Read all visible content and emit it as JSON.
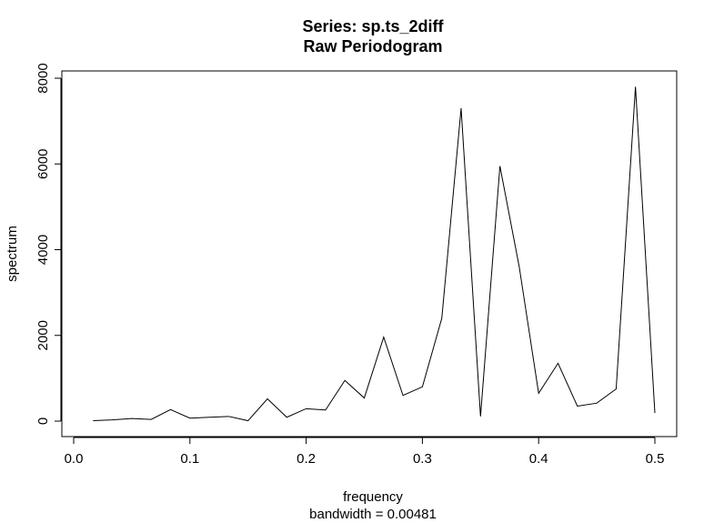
{
  "chart_data": {
    "type": "line",
    "title": "Series: sp.ts_2diff",
    "subtitle": "Raw Periodogram",
    "xlabel": "frequency",
    "xlabel_sub": "bandwidth = 0.00481",
    "ylabel": "spectrum",
    "xlim": [
      0,
      0.5
    ],
    "ylim": [
      0,
      8000
    ],
    "x_ticks": [
      "0.0",
      "0.1",
      "0.2",
      "0.3",
      "0.4",
      "0.5"
    ],
    "y_ticks": [
      "0",
      "2000",
      "4000",
      "6000",
      "8000"
    ],
    "grid": false,
    "line_color": "#000000",
    "series": [
      {
        "x": [
          0.0167,
          0.0333,
          0.05,
          0.0667,
          0.0833,
          0.1,
          0.1167,
          0.1333,
          0.15,
          0.1667,
          0.1833,
          0.2,
          0.2167,
          0.2333,
          0.25,
          0.2667,
          0.2833,
          0.3,
          0.3167,
          0.3333,
          0.35,
          0.3667,
          0.3833,
          0.4,
          0.4167,
          0.4333,
          0.45,
          0.4667,
          0.4833,
          0.5
        ],
        "y": [
          10,
          30,
          60,
          40,
          270,
          70,
          90,
          110,
          10,
          520,
          90,
          290,
          260,
          950,
          540,
          1960,
          600,
          800,
          2400,
          7300,
          110,
          5950,
          3600,
          650,
          1350,
          350,
          420,
          750,
          7800,
          190
        ]
      }
    ]
  }
}
